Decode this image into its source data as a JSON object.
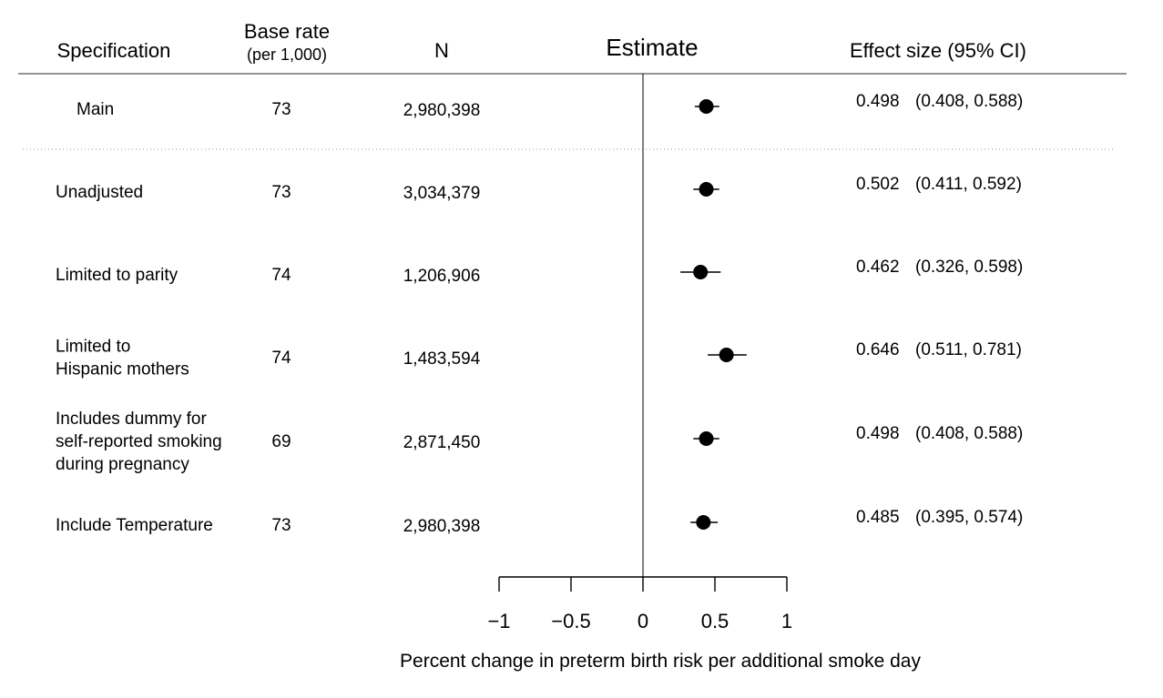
{
  "headers": {
    "specification": "Specification",
    "base_rate": "Base rate",
    "base_rate_unit": "(per 1,000)",
    "n": "N",
    "estimate": "Estimate",
    "effect": "Effect size (95% CI)"
  },
  "chart_data": {
    "type": "scatter",
    "subtype": "forest-plot",
    "xlabel": "Percent change in preterm birth risk per additional smoke day",
    "xlim": [
      -1,
      1
    ],
    "xticks": [
      -1,
      -0.5,
      0,
      0.5,
      1
    ],
    "xtick_labels": [
      "−1",
      "−0.5",
      "0",
      "0.5",
      "1"
    ],
    "reference_line": 0,
    "rows": [
      {
        "label": [
          "Main"
        ],
        "base_rate": "73",
        "n": "2,980,398",
        "estimate": 0.44,
        "ci_low": 0.36,
        "ci_high": 0.53,
        "effect_text": "0.498",
        "ci_text": "(0.408, 0.588)"
      },
      {
        "label": [
          "Unadjusted"
        ],
        "base_rate": "73",
        "n": "3,034,379",
        "estimate": 0.44,
        "ci_low": 0.35,
        "ci_high": 0.53,
        "effect_text": "0.502",
        "ci_text": "(0.411, 0.592)"
      },
      {
        "label": [
          "Limited to parity"
        ],
        "base_rate": "74",
        "n": "1,206,906",
        "estimate": 0.4,
        "ci_low": 0.26,
        "ci_high": 0.54,
        "effect_text": "0.462",
        "ci_text": "(0.326, 0.598)"
      },
      {
        "label": [
          "Limited to",
          "Hispanic mothers"
        ],
        "base_rate": "74",
        "n": "1,483,594",
        "estimate": 0.58,
        "ci_low": 0.45,
        "ci_high": 0.72,
        "effect_text": "0.646",
        "ci_text": "(0.511, 0.781)"
      },
      {
        "label": [
          "Includes dummy for",
          "self-reported smoking",
          "during pregnancy"
        ],
        "base_rate": "69",
        "n": "2,871,450",
        "estimate": 0.44,
        "ci_low": 0.35,
        "ci_high": 0.53,
        "effect_text": "0.498",
        "ci_text": "(0.408, 0.588)"
      },
      {
        "label": [
          "Include Temperature"
        ],
        "base_rate": "73",
        "n": "2,980,398",
        "estimate": 0.42,
        "ci_low": 0.33,
        "ci_high": 0.52,
        "effect_text": "0.485",
        "ci_text": "(0.395, 0.574)"
      }
    ]
  }
}
